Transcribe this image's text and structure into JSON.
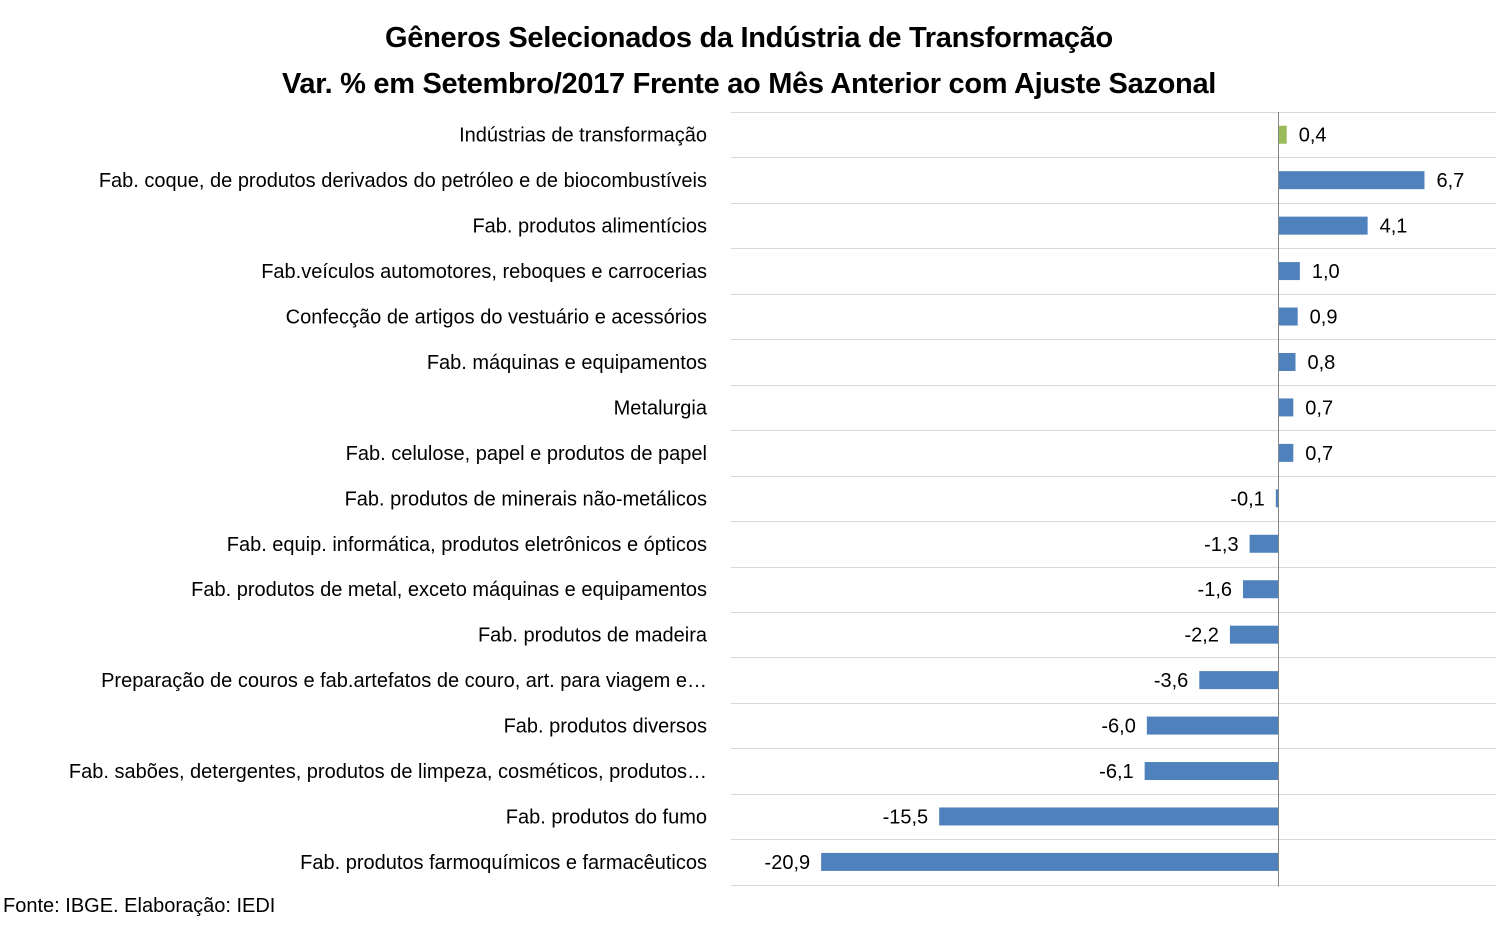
{
  "chart_data": {
    "type": "bar",
    "orientation": "horizontal",
    "title": "Gêneros Selecionados da Indústria de Transformação",
    "subtitle": "Var. % em Setembro/2017 Frente ao Mês Anterior com Ajuste Sazonal",
    "categories": [
      "Indústrias de transformação",
      "Fab. coque, de produtos derivados do petróleo e de biocombustíveis",
      "Fab. produtos alimentícios",
      "Fab.veículos automotores, reboques e carrocerias",
      "Confecção de artigos do vestuário e acessórios",
      "Fab. máquinas e equipamentos",
      "Metalurgia",
      "Fab. celulose, papel e produtos de papel",
      "Fab. produtos de minerais não-metálicos",
      "Fab. equip. informática, produtos eletrônicos e ópticos",
      "Fab. produtos de metal, exceto máquinas e equipamentos",
      "Fab. produtos de madeira",
      "Preparação de couros e fab.artefatos de couro, art. para viagem e…",
      "Fab. produtos diversos",
      "Fab. sabões, detergentes, produtos de limpeza, cosméticos, produtos…",
      "Fab. produtos do fumo",
      "Fab. produtos farmoquímicos e farmacêuticos"
    ],
    "values": [
      0.4,
      6.7,
      4.1,
      1.0,
      0.9,
      0.8,
      0.7,
      0.7,
      -0.1,
      -1.3,
      -1.6,
      -2.2,
      -3.6,
      -6.0,
      -6.1,
      -15.5,
      -20.9
    ],
    "value_labels": [
      "0,4",
      "6,7",
      "4,1",
      "1,0",
      "0,9",
      "0,8",
      "0,7",
      "0,7",
      "-0,1",
      "-1,3",
      "-1,6",
      "-2,2",
      "-3,6",
      "-6,0",
      "-6,1",
      "-15,5",
      "-20,9"
    ],
    "xlim": [
      -25,
      10
    ],
    "colors": {
      "highlight": "#9bbb59",
      "default": "#4f81bd",
      "gridline": "#d9d9d9",
      "axis": "#868686"
    },
    "highlight_index": 0,
    "grid": true,
    "legend": "none"
  },
  "source": "Fonte: IBGE. Elaboração: IEDI"
}
